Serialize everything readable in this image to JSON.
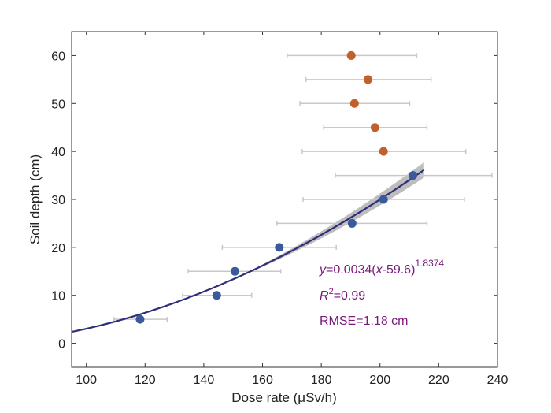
{
  "chart_data": {
    "type": "scatter",
    "xlabel": "Dose rate (μSv/h)",
    "ylabel": "Soil depth (cm)",
    "xlim": [
      95,
      240
    ],
    "ylim": [
      -5,
      65
    ],
    "xticks": [
      100,
      120,
      140,
      160,
      180,
      200,
      220,
      240
    ],
    "yticks": [
      0,
      10,
      20,
      30,
      40,
      50,
      60
    ],
    "grid": false,
    "series": [
      {
        "color": "#3a5a9c",
        "points": [
          {
            "x": 118.3,
            "y": 5,
            "xmin": 109.4,
            "xmax": 127.5
          },
          {
            "x": 144.4,
            "y": 10,
            "xmin": 132.8,
            "xmax": 156.3
          },
          {
            "x": 150.6,
            "y": 15,
            "xmin": 134.7,
            "xmax": 166.2
          },
          {
            "x": 165.7,
            "y": 20,
            "xmin": 146.3,
            "xmax": 185.1
          },
          {
            "x": 190.5,
            "y": 25,
            "xmin": 164.9,
            "xmax": 216.0
          },
          {
            "x": 201.2,
            "y": 30,
            "xmin": 173.8,
            "xmax": 228.7
          },
          {
            "x": 211.2,
            "y": 35,
            "xmin": 184.8,
            "xmax": 238.1
          }
        ]
      },
      {
        "color": "#c0602a",
        "points": [
          {
            "x": 201.2,
            "y": 40,
            "xmin": 173.5,
            "xmax": 229.2
          },
          {
            "x": 198.3,
            "y": 45,
            "xmin": 180.8,
            "xmax": 216.0
          },
          {
            "x": 191.3,
            "y": 50,
            "xmin": 172.7,
            "xmax": 210.1
          },
          {
            "x": 195.9,
            "y": 55,
            "xmin": 174.8,
            "xmax": 217.4
          },
          {
            "x": 190.2,
            "y": 60,
            "xmin": 168.4,
            "xmax": 212.5
          }
        ]
      }
    ],
    "fit": {
      "a": 0.0034,
      "c": 59.6,
      "b": 1.8374,
      "xrange": [
        95,
        215
      ],
      "color": "#2e2e7a",
      "band_color": "#bdbdbd"
    },
    "errorbar_color": "#c8c8c8",
    "annotations": {
      "eq_y": "y",
      "eq_mid": "=0.0034(",
      "eq_x": "x",
      "eq_end": "-59.6)",
      "eq_exp": "1.8374",
      "r2_r": "R",
      "r2_sup": "2",
      "r2_val": "=0.99",
      "rmse": "RMSE=1.18 cm"
    }
  }
}
